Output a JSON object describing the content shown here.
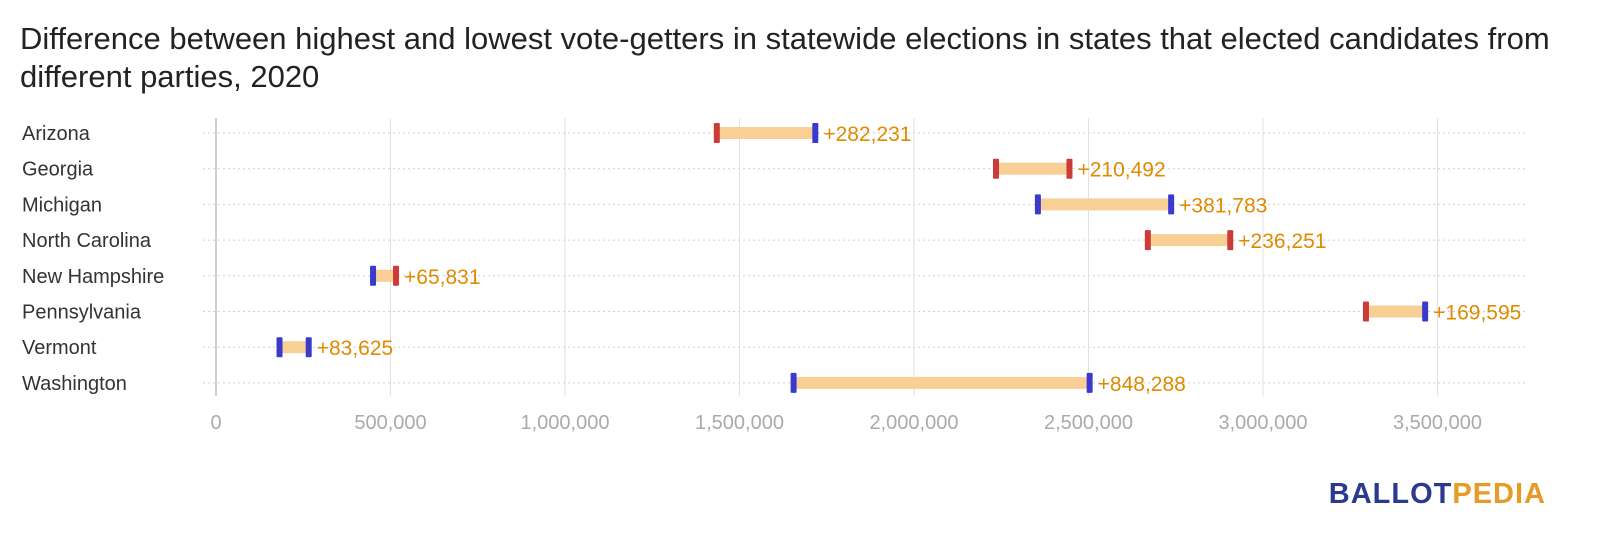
{
  "title": "Difference between highest and lowest vote-getters in statewide elections in states that elected candidates from different parties, 2020",
  "logo": {
    "part1": "BALLOT",
    "part2": "PEDIA"
  },
  "colors": {
    "dem": "#3a3acc",
    "rep": "#cc3a3a",
    "bar": "#f8cf95",
    "diff": "#e08a00"
  },
  "chart_data": {
    "type": "range-bar",
    "x_ticks": [
      0,
      500000,
      1000000,
      1500000,
      2000000,
      2500000,
      3000000,
      3500000
    ],
    "x_tick_labels": [
      "0",
      "500,000",
      "1,000,000",
      "1,500,000",
      "2,000,000",
      "2,500,000",
      "3,000,000",
      "3,500,000"
    ],
    "xlim": [
      0,
      3750000
    ],
    "grid": true,
    "rows": [
      {
        "state": "Arizona",
        "low": 1435000,
        "high": 1717231,
        "low_party": "rep",
        "high_party": "dem",
        "diff_label": "+282,231"
      },
      {
        "state": "Georgia",
        "low": 2235000,
        "high": 2445492,
        "low_party": "rep",
        "high_party": "rep",
        "diff_label": "+210,492"
      },
      {
        "state": "Michigan",
        "low": 2355000,
        "high": 2736783,
        "low_party": "dem",
        "high_party": "dem",
        "diff_label": "+381,783"
      },
      {
        "state": "North Carolina",
        "low": 2670000,
        "high": 2906251,
        "low_party": "rep",
        "high_party": "rep",
        "diff_label": "+236,251"
      },
      {
        "state": "New Hampshire",
        "low": 450000,
        "high": 515831,
        "low_party": "dem",
        "high_party": "rep",
        "diff_label": "+65,831"
      },
      {
        "state": "Pennsylvania",
        "low": 3295000,
        "high": 3464595,
        "low_party": "rep",
        "high_party": "dem",
        "diff_label": "+169,595"
      },
      {
        "state": "Vermont",
        "low": 182000,
        "high": 265625,
        "low_party": "dem",
        "high_party": "dem",
        "diff_label": "+83,625"
      },
      {
        "state": "Washington",
        "low": 1655000,
        "high": 2503288,
        "low_party": "dem",
        "high_party": "dem",
        "diff_label": "+848,288"
      }
    ]
  }
}
